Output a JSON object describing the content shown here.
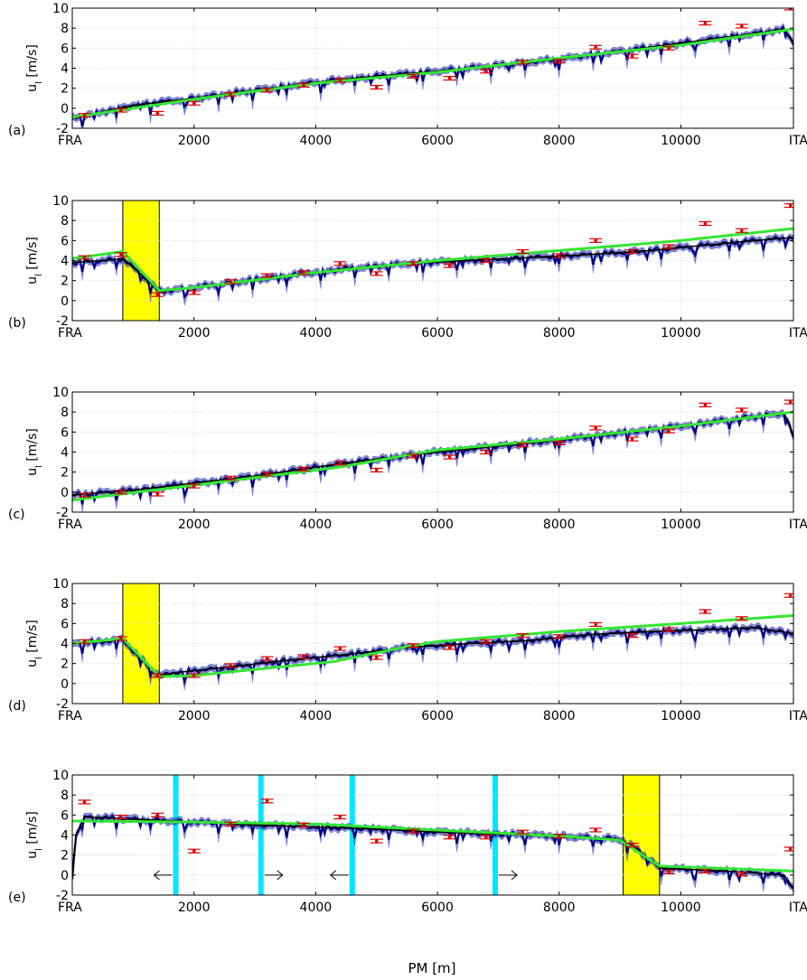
{
  "figure": {
    "xlabel": "PM [m]"
  },
  "chart_data": [
    {
      "panel": "(a)",
      "type": "line",
      "ylabel": "u_l [m/s]",
      "ylim": [
        -2,
        10
      ],
      "yticks": [
        -2,
        0,
        2,
        4,
        6,
        8,
        10
      ],
      "xlim": [
        0,
        11850
      ],
      "xticks": [
        {
          "x": 0,
          "label": "FRA"
        },
        {
          "x": 2000,
          "label": "2000"
        },
        {
          "x": 4000,
          "label": "4000"
        },
        {
          "x": 6000,
          "label": "6000"
        },
        {
          "x": 8000,
          "label": "8000"
        },
        {
          "x": 10000,
          "label": "10000"
        },
        {
          "x": 11850,
          "label": "ITA"
        }
      ],
      "grid": true,
      "series": [
        {
          "role": "simulation",
          "color": "#000000",
          "x": [
            0,
            1000,
            2000,
            3000,
            4000,
            5000,
            6000,
            7000,
            8000,
            9000,
            10000,
            11000,
            11700,
            11850
          ],
          "values": [
            -1.0,
            0.3,
            1.0,
            1.8,
            2.6,
            3.2,
            3.7,
            4.3,
            4.9,
            5.7,
            6.5,
            7.3,
            7.9,
            6.5
          ]
        },
        {
          "role": "model",
          "color": "#33e633",
          "x": [
            0,
            2000,
            4000,
            6000,
            8000,
            10000,
            11850
          ],
          "values": [
            -0.9,
            0.9,
            2.5,
            3.6,
            5.0,
            6.3,
            7.9
          ]
        }
      ],
      "points": {
        "color": "#e00000",
        "x": [
          200,
          800,
          1400,
          2000,
          2600,
          3200,
          3800,
          4400,
          5000,
          5600,
          6200,
          6800,
          7400,
          8000,
          8600,
          9200,
          9800,
          10400,
          11000,
          11800
        ],
        "values": [
          -0.7,
          -0.2,
          -0.5,
          0.5,
          1.4,
          1.8,
          2.3,
          2.8,
          2.1,
          3.2,
          3.0,
          3.7,
          4.6,
          4.7,
          6.1,
          5.2,
          6.0,
          8.5,
          8.2,
          10.0
        ]
      },
      "bands": []
    },
    {
      "panel": "(b)",
      "type": "line",
      "ylabel": "u_l [m/s]",
      "ylim": [
        -2,
        10
      ],
      "yticks": [
        -2,
        0,
        2,
        4,
        6,
        8,
        10
      ],
      "xlim": [
        0,
        11850
      ],
      "xticks": [
        {
          "x": 0,
          "label": "FRA"
        },
        {
          "x": 2000,
          "label": "2000"
        },
        {
          "x": 4000,
          "label": "4000"
        },
        {
          "x": 6000,
          "label": "6000"
        },
        {
          "x": 8000,
          "label": "8000"
        },
        {
          "x": 10000,
          "label": "10000"
        },
        {
          "x": 11850,
          "label": "ITA"
        }
      ],
      "grid": true,
      "series": [
        {
          "role": "simulation",
          "color": "#000000",
          "x": [
            0,
            500,
            830,
            1100,
            1430,
            1700,
            2500,
            3500,
            4500,
            5500,
            6500,
            7500,
            8500,
            9500,
            10500,
            11200,
            11850
          ],
          "values": [
            3.8,
            4.0,
            4.2,
            2.8,
            0.9,
            1.1,
            1.7,
            2.5,
            3.2,
            3.7,
            4.0,
            4.3,
            4.6,
            5.0,
            5.6,
            6.0,
            6.3
          ]
        },
        {
          "role": "model",
          "color": "#33e633",
          "x": [
            0,
            830,
            1430,
            2000,
            4000,
            6000,
            8000,
            10000,
            11850
          ],
          "values": [
            4.2,
            4.9,
            1.0,
            1.3,
            2.8,
            4.0,
            5.0,
            6.0,
            7.2
          ]
        }
      ],
      "points": {
        "color": "#e00000",
        "x": [
          200,
          800,
          1400,
          2000,
          2600,
          3200,
          3800,
          4400,
          5000,
          5600,
          6200,
          6800,
          7400,
          8000,
          8600,
          9200,
          9800,
          10400,
          11000,
          11800
        ],
        "values": [
          4.3,
          4.6,
          0.6,
          0.8,
          1.9,
          2.5,
          2.8,
          3.7,
          2.7,
          3.7,
          3.5,
          4.0,
          4.9,
          4.5,
          6.0,
          4.9,
          5.4,
          7.7,
          7.0,
          9.5
        ]
      },
      "bands": [
        {
          "color": "#ffff00",
          "x0": 830,
          "x1": 1430
        }
      ]
    },
    {
      "panel": "(c)",
      "type": "line",
      "ylabel": "u_l [m/s]",
      "ylim": [
        -2,
        10
      ],
      "yticks": [
        -2,
        0,
        2,
        4,
        6,
        8,
        10
      ],
      "xlim": [
        0,
        11850
      ],
      "xticks": [
        {
          "x": 0,
          "label": "FRA"
        },
        {
          "x": 2000,
          "label": "2000"
        },
        {
          "x": 4000,
          "label": "4000"
        },
        {
          "x": 6000,
          "label": "6000"
        },
        {
          "x": 8000,
          "label": "8000"
        },
        {
          "x": 10000,
          "label": "10000"
        },
        {
          "x": 11850,
          "label": "ITA"
        }
      ],
      "grid": true,
      "series": [
        {
          "role": "simulation",
          "color": "#000000",
          "x": [
            0,
            1000,
            2000,
            3000,
            4000,
            5000,
            6000,
            7000,
            8000,
            9000,
            10000,
            11000,
            11700,
            11850
          ],
          "values": [
            -0.3,
            0.2,
            0.9,
            1.6,
            2.5,
            3.3,
            4.0,
            4.6,
            5.2,
            5.9,
            6.6,
            7.4,
            7.9,
            5.5
          ]
        },
        {
          "role": "model",
          "color": "#33e633",
          "x": [
            0,
            2000,
            4400,
            5500,
            6000,
            8000,
            10000,
            11850
          ],
          "values": [
            -0.8,
            0.7,
            2.5,
            3.7,
            4.2,
            5.3,
            6.6,
            8.0
          ]
        }
      ],
      "points": {
        "color": "#e00000",
        "x": [
          200,
          800,
          1400,
          2000,
          2600,
          3200,
          3800,
          4400,
          5000,
          5600,
          6200,
          6800,
          7400,
          8000,
          8600,
          9200,
          9800,
          10400,
          11000,
          11800
        ],
        "values": [
          -0.3,
          0.0,
          -0.2,
          0.6,
          1.4,
          1.8,
          2.3,
          2.9,
          2.2,
          3.6,
          3.5,
          4.0,
          4.7,
          4.9,
          6.4,
          5.3,
          6.1,
          8.7,
          8.2,
          9.0
        ]
      },
      "bands": []
    },
    {
      "panel": "(d)",
      "type": "line",
      "ylabel": "u_l [m/s]",
      "ylim": [
        -2,
        10
      ],
      "yticks": [
        -2,
        0,
        2,
        4,
        6,
        8,
        10
      ],
      "xlim": [
        0,
        11850
      ],
      "xticks": [
        {
          "x": 0,
          "label": "FRA"
        },
        {
          "x": 2000,
          "label": "2000"
        },
        {
          "x": 4000,
          "label": "4000"
        },
        {
          "x": 6000,
          "label": "6000"
        },
        {
          "x": 8000,
          "label": "8000"
        },
        {
          "x": 10000,
          "label": "10000"
        },
        {
          "x": 11850,
          "label": "ITA"
        }
      ],
      "grid": true,
      "series": [
        {
          "role": "simulation",
          "color": "#000000",
          "x": [
            0,
            500,
            830,
            1100,
            1430,
            1700,
            2500,
            3500,
            4500,
            5500,
            6500,
            7500,
            8500,
            9500,
            10500,
            11200,
            11850
          ],
          "values": [
            4.0,
            4.2,
            4.4,
            2.6,
            0.8,
            1.1,
            1.6,
            2.3,
            2.9,
            3.6,
            4.0,
            4.3,
            4.9,
            5.2,
            5.4,
            5.6,
            5.0
          ]
        },
        {
          "role": "model",
          "color": "#33e633",
          "x": [
            0,
            830,
            1430,
            2000,
            4300,
            5500,
            6000,
            8000,
            10000,
            11850
          ],
          "values": [
            4.0,
            4.5,
            0.7,
            0.8,
            2.2,
            3.7,
            4.2,
            5.2,
            6.0,
            6.8
          ]
        }
      ],
      "points": {
        "color": "#e00000",
        "x": [
          200,
          800,
          1400,
          2000,
          2600,
          3200,
          3800,
          4400,
          5000,
          5600,
          6200,
          6800,
          7400,
          8000,
          8600,
          9200,
          9800,
          10400,
          11000,
          11800
        ],
        "values": [
          4.2,
          4.5,
          0.8,
          0.8,
          1.8,
          2.5,
          2.7,
          3.5,
          2.6,
          3.8,
          3.6,
          4.2,
          4.8,
          4.7,
          5.9,
          4.8,
          5.4,
          7.2,
          6.5,
          8.8
        ]
      },
      "bands": [
        {
          "color": "#ffff00",
          "x0": 830,
          "x1": 1430
        }
      ]
    },
    {
      "panel": "(e)",
      "type": "line",
      "ylabel": "u_l [m/s]",
      "ylim": [
        -2,
        10
      ],
      "yticks": [
        -2,
        0,
        2,
        4,
        6,
        8,
        10
      ],
      "xlim": [
        0,
        11850
      ],
      "xticks": [
        {
          "x": 0,
          "label": "FRA"
        },
        {
          "x": 2000,
          "label": "2000"
        },
        {
          "x": 4000,
          "label": "4000"
        },
        {
          "x": 6000,
          "label": "6000"
        },
        {
          "x": 8000,
          "label": "8000"
        },
        {
          "x": 10000,
          "label": "10000"
        },
        {
          "x": 11850,
          "label": "ITA"
        }
      ],
      "grid": true,
      "series": [
        {
          "role": "simulation",
          "color": "#000000",
          "x": [
            0,
            60,
            200,
            1000,
            2000,
            3000,
            4000,
            5000,
            6000,
            7000,
            8000,
            9000,
            9300,
            9650,
            10000,
            11000,
            11700,
            11850
          ],
          "values": [
            -0.2,
            4.0,
            5.8,
            5.6,
            5.3,
            5.0,
            4.8,
            4.6,
            4.3,
            4.1,
            3.9,
            3.6,
            2.5,
            0.7,
            0.6,
            0.3,
            0.0,
            -1.4
          ]
        },
        {
          "role": "model",
          "color": "#33e633",
          "x": [
            0,
            2000,
            4000,
            6000,
            8000,
            9000,
            9650,
            11850
          ],
          "values": [
            5.4,
            5.3,
            5.1,
            4.5,
            3.9,
            3.5,
            0.9,
            0.4
          ]
        }
      ],
      "points": {
        "color": "#e00000",
        "x": [
          200,
          800,
          1400,
          2000,
          2600,
          3200,
          3800,
          4400,
          5000,
          5600,
          6200,
          6800,
          7400,
          8000,
          8600,
          9200,
          9800,
          10400,
          11000,
          11800
        ],
        "values": [
          7.3,
          5.8,
          6.0,
          2.4,
          5.1,
          7.4,
          5.0,
          5.8,
          3.4,
          4.4,
          3.8,
          3.8,
          4.3,
          3.9,
          4.5,
          3.0,
          0.3,
          0.4,
          0.1,
          2.6
        ]
      },
      "bands": [
        {
          "color": "#ffff00",
          "x0": 9050,
          "x1": 9650
        }
      ],
      "markers": [
        {
          "color": "#00e6ff",
          "x": 1700
        },
        {
          "color": "#00e6ff",
          "x": 3100
        },
        {
          "color": "#00e6ff",
          "x": 4600
        },
        {
          "color": "#00e6ff",
          "x": 6950
        }
      ],
      "arrows": [
        {
          "x": 1700,
          "dir": "left"
        },
        {
          "x": 3100,
          "dir": "right"
        },
        {
          "x": 4600,
          "dir": "left"
        },
        {
          "x": 6950,
          "dir": "right"
        }
      ]
    }
  ]
}
